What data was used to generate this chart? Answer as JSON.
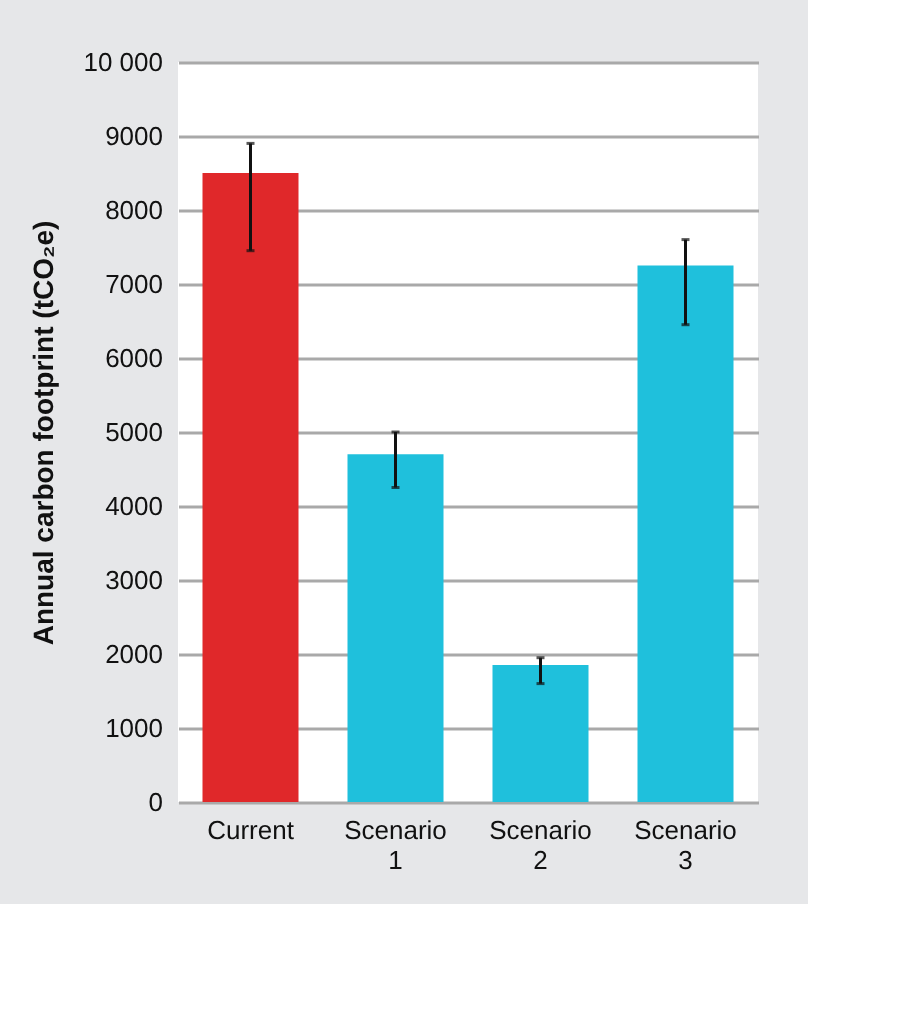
{
  "chart_data": {
    "type": "bar",
    "ylabel": "Annual carbon footprint (tCO₂e)",
    "categories": [
      "Current",
      "Scenario 1",
      "Scenario 2",
      "Scenario 3"
    ],
    "values": [
      8500,
      4700,
      1850,
      7250
    ],
    "colors": [
      "#e0282a",
      "#1fc0dc",
      "#1fc0dc",
      "#1fc0dc"
    ],
    "errors": [
      [
        7450,
        8900
      ],
      [
        4250,
        5000
      ],
      [
        1600,
        1950
      ],
      [
        6450,
        7600
      ]
    ],
    "ylim": [
      0,
      10000
    ],
    "yticks": [
      0,
      1000,
      2000,
      3000,
      4000,
      5000,
      6000,
      7000,
      8000,
      9000,
      {
        "value": 10000,
        "label": "10 000"
      }
    ],
    "grid": "y"
  }
}
